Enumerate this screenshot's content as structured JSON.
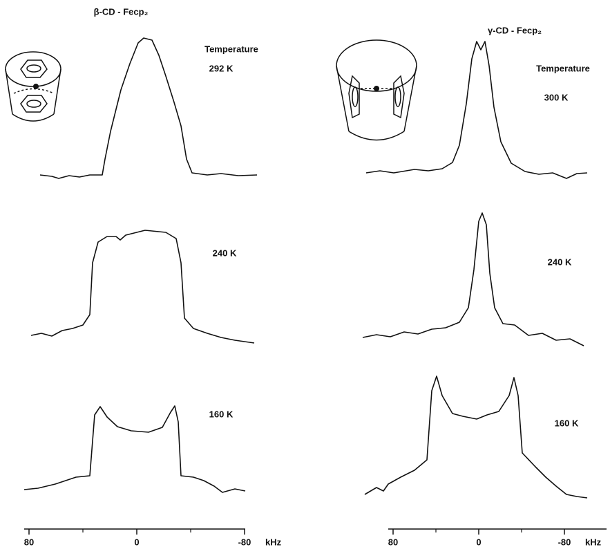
{
  "panels": [
    {
      "title": "β-CD - Fecp₂",
      "temperature_heading": "Temperature",
      "spectra": [
        "292 K",
        "240 K",
        "160 K"
      ],
      "axis": {
        "ticks": [
          80,
          0,
          -80
        ],
        "unit": "kHz"
      }
    },
    {
      "title": "γ-CD - Fecp₂",
      "temperature_heading": "Temperature",
      "spectra": [
        "300 K",
        "240 K",
        "160 K"
      ],
      "axis": {
        "ticks": [
          80,
          0,
          -80
        ],
        "unit": "kHz"
      }
    }
  ]
}
